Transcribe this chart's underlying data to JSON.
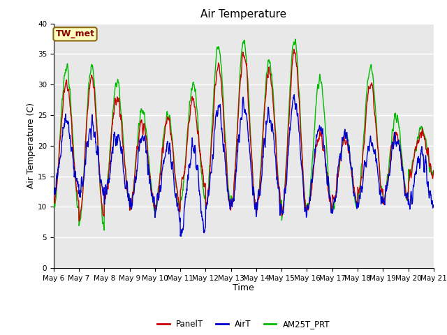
{
  "title": "Air Temperature",
  "xlabel": "Time",
  "ylabel": "Air Temperature (C)",
  "ylim": [
    0,
    40
  ],
  "yticks": [
    0,
    5,
    10,
    15,
    20,
    25,
    30,
    35,
    40
  ],
  "x_tick_labels": [
    "May 6",
    "May 7",
    "May 8",
    "May 9",
    "May 10",
    "May 11",
    "May 12",
    "May 13",
    "May 14",
    "May 15",
    "May 16",
    "May 17",
    "May 18",
    "May 19",
    "May 20",
    "May 21"
  ],
  "annotation_text": "TW_met",
  "annotation_color": "#8B0000",
  "annotation_bg": "#FFFFC0",
  "annotation_border": "#8B6914",
  "line_colors": {
    "PanelT": "#CC0000",
    "AirT": "#0000CC",
    "AM25T_PRT": "#00BB00"
  },
  "line_width": 1.0,
  "fig_bg": "#FFFFFF",
  "plot_bg": "#E8E8E8",
  "grid_color": "#FFFFFF",
  "title_fontsize": 11,
  "axis_label_fontsize": 9,
  "tick_fontsize": 7.5,
  "legend_fontsize": 8.5,
  "panel_peaks": [
    30,
    31,
    28,
    24,
    24,
    27,
    33,
    35,
    32,
    35,
    22,
    21,
    30,
    22,
    22
  ],
  "panel_troughs": [
    11,
    8,
    11,
    10,
    10,
    13,
    10,
    10,
    10,
    9,
    10,
    11,
    12,
    11,
    15
  ],
  "air_peaks": [
    24,
    23,
    22,
    21,
    20,
    20,
    26,
    27,
    25,
    28,
    23,
    22,
    21,
    21,
    19
  ],
  "air_troughs": [
    13,
    12,
    12,
    10,
    9,
    6,
    10,
    10,
    10,
    9,
    10,
    10,
    11,
    11,
    10
  ],
  "am25_peaks": [
    33,
    33,
    30,
    26,
    25,
    30,
    36,
    37,
    34,
    37,
    31,
    22,
    33,
    25,
    23
  ],
  "am25_troughs": [
    10,
    7,
    11,
    10,
    10,
    11,
    10,
    10,
    10,
    9,
    10,
    10,
    12,
    11,
    15
  ],
  "pts_per_day": 96,
  "days": 15
}
